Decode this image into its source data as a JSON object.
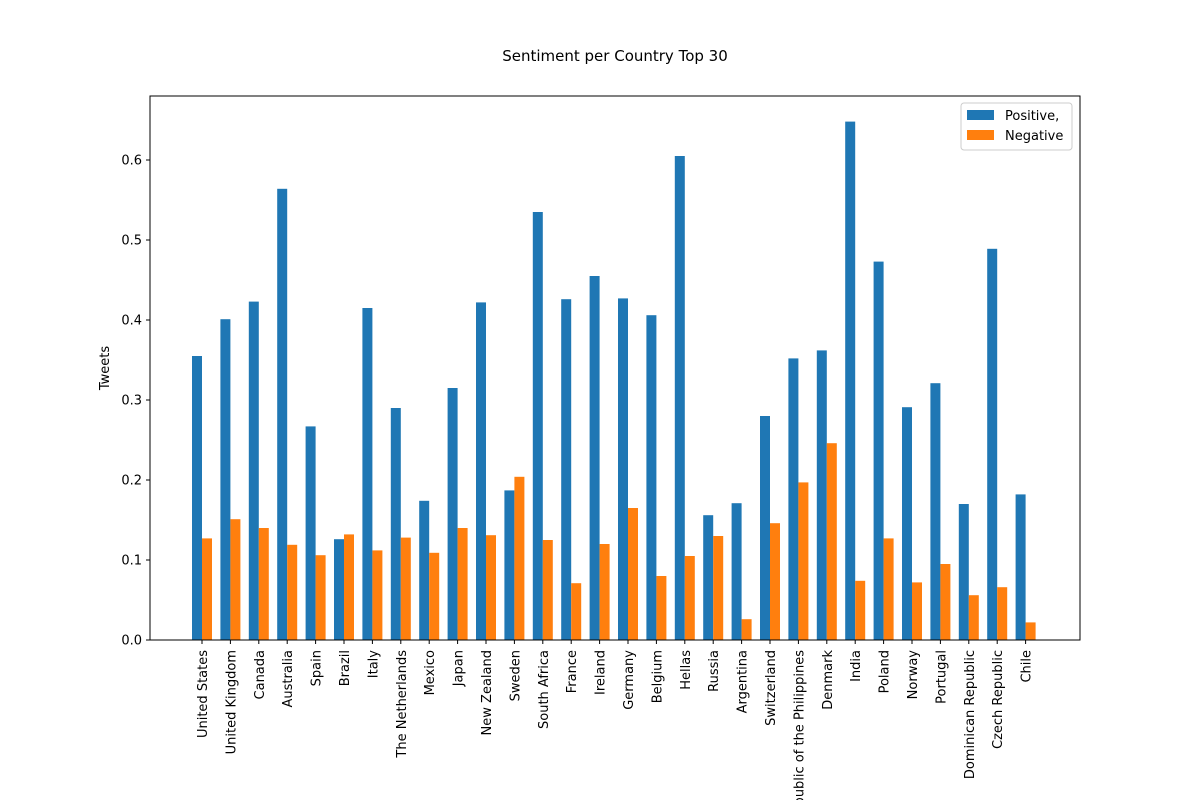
{
  "chart_data": {
    "type": "bar",
    "title": "Sentiment per Country Top 30",
    "xlabel": "",
    "ylabel": "Tweets",
    "ylim": [
      0,
      0.68
    ],
    "yticks": [
      "0.0",
      "0.1",
      "0.2",
      "0.3",
      "0.4",
      "0.5",
      "0.6"
    ],
    "categories": [
      "United States",
      "United Kingdom",
      "Canada",
      "Australia",
      "Spain",
      "Brazil",
      "Italy",
      "The Netherlands",
      "Mexico",
      "Japan",
      "New Zealand",
      "Sweden",
      "South Africa",
      "France",
      "Ireland",
      "Germany",
      "Belgium",
      "Hellas",
      "Russia",
      "Argentina",
      "Switzerland",
      "Republic of the Philippines",
      "Denmark",
      "India",
      "Poland",
      "Norway",
      "Portugal",
      "Dominican Republic",
      "Czech Republic",
      "Chile"
    ],
    "series": [
      {
        "name": "Positive,",
        "color": "#1f77b4",
        "values": [
          0.355,
          0.401,
          0.423,
          0.564,
          0.267,
          0.126,
          0.415,
          0.29,
          0.174,
          0.315,
          0.422,
          0.187,
          0.535,
          0.426,
          0.455,
          0.427,
          0.406,
          0.605,
          0.156,
          0.171,
          0.28,
          0.352,
          0.362,
          0.648,
          0.473,
          0.291,
          0.321,
          0.17,
          0.489,
          0.182
        ]
      },
      {
        "name": "Negative",
        "color": "#ff7f0e",
        "values": [
          0.127,
          0.151,
          0.14,
          0.119,
          0.106,
          0.132,
          0.112,
          0.128,
          0.109,
          0.14,
          0.131,
          0.204,
          0.125,
          0.071,
          0.12,
          0.165,
          0.08,
          0.105,
          0.13,
          0.026,
          0.146,
          0.197,
          0.246,
          0.074,
          0.127,
          0.072,
          0.095,
          0.056,
          0.066,
          0.022
        ]
      }
    ],
    "legend_position": "top-right",
    "grid": false
  }
}
